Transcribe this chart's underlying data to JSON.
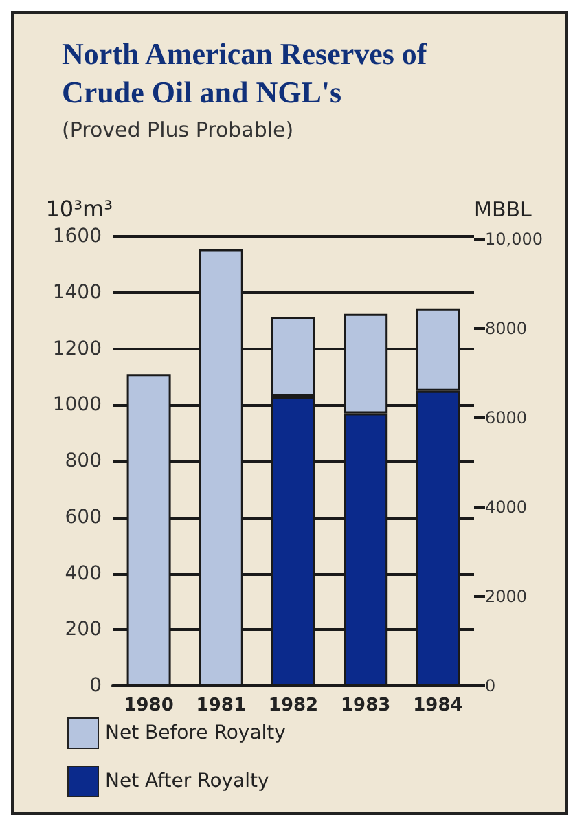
{
  "chart_data": {
    "type": "bar",
    "title": "North American Reserves of Crude Oil and NGL's",
    "subtitle": "(Proved Plus Probable)",
    "ylabel": "10³m³",
    "y2label": "MBBL",
    "categories": [
      "1980",
      "1981",
      "1982",
      "1983",
      "1984"
    ],
    "series": [
      {
        "name": "Net After Royalty",
        "color": "#0b2a8c",
        "values": [
          null,
          null,
          1030,
          970,
          1050
        ]
      },
      {
        "name": "Net Before Royalty",
        "color": "#b5c4df",
        "values": [
          1110,
          1555,
          284,
          354,
          294
        ]
      }
    ],
    "stacked": true,
    "ylim": [
      0,
      1600
    ],
    "yticks": [
      0,
      200,
      400,
      600,
      800,
      1000,
      1200,
      1400,
      1600
    ],
    "y2lim": [
      0,
      10064
    ],
    "y2ticks": [
      0,
      2000,
      4000,
      6000,
      8000,
      {
        "value": 10000,
        "label": "10,000"
      }
    ],
    "grid": "y",
    "legend": "bottom left"
  }
}
